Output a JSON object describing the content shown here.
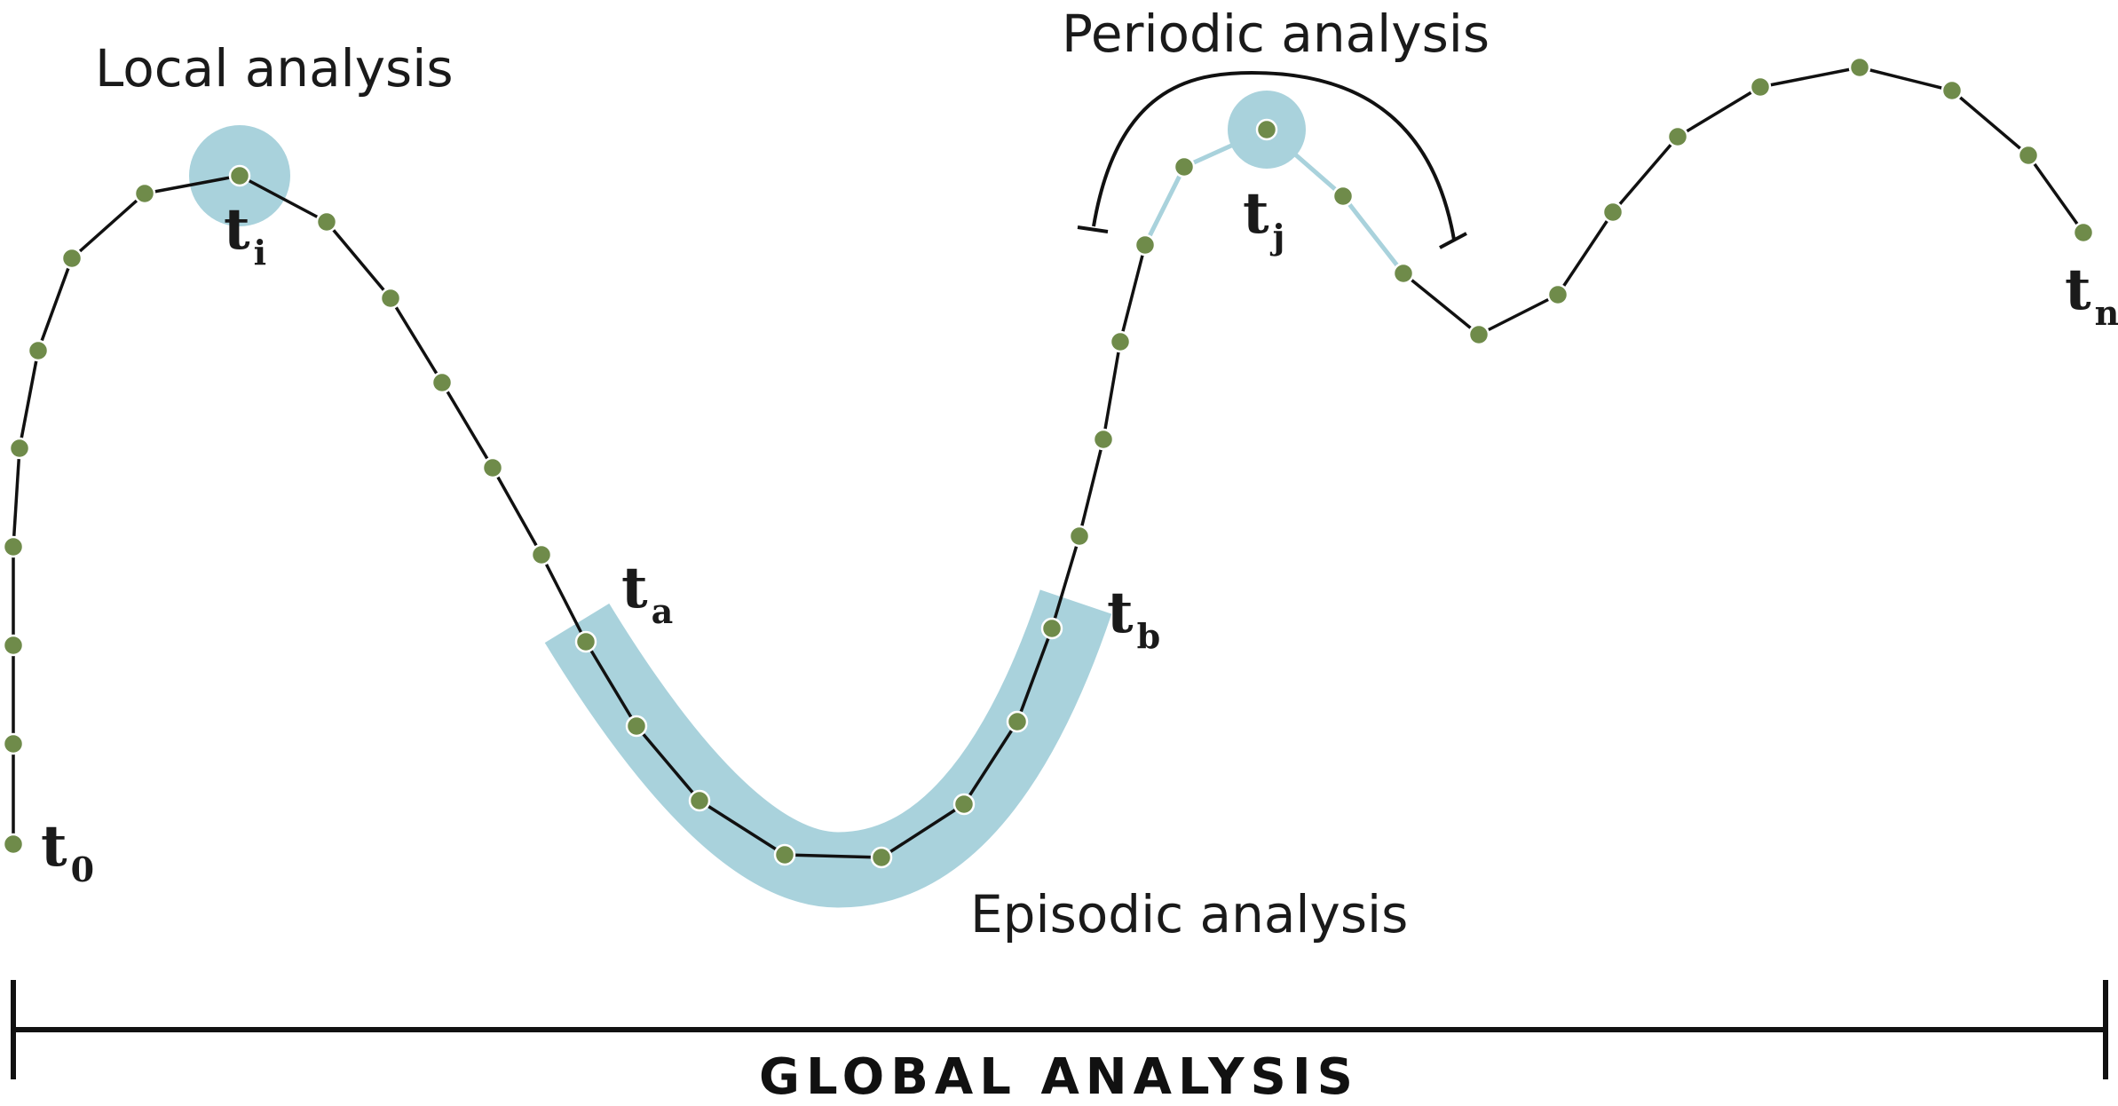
{
  "labels": {
    "local": "Local analysis",
    "periodic": "Periodic analysis",
    "episodic": "Episodic analysis",
    "global": "GLOBAL ANALYSIS"
  },
  "time_points": {
    "t0": {
      "base": "t",
      "sub": "0"
    },
    "ti": {
      "base": "t",
      "sub": "i"
    },
    "ta": {
      "base": "t",
      "sub": "a"
    },
    "tb": {
      "base": "t",
      "sub": "b"
    },
    "tj": {
      "base": "t",
      "sub": "j"
    },
    "tn": {
      "base": "t",
      "sub": "n"
    }
  },
  "colors": {
    "point_fill": "#6f8b4a",
    "point_stroke": "#ffffff",
    "line": "#111111",
    "highlight": "#a9d2dc",
    "highlight_line": "#a9d2dc"
  }
}
